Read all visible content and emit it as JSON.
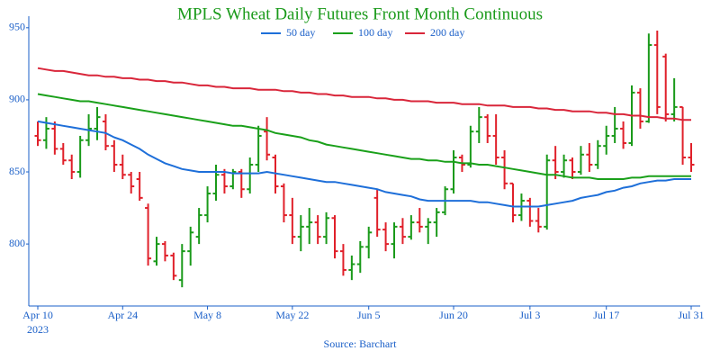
{
  "chart_data": {
    "type": "ohlc",
    "title": "MPLS Wheat Daily Futures Front Month Continuous",
    "source": "Source: Barchart",
    "x_year": "2023",
    "categories": [
      "Apr 10",
      null,
      null,
      null,
      null,
      null,
      null,
      null,
      null,
      null,
      "Apr 24",
      null,
      null,
      null,
      null,
      null,
      null,
      null,
      null,
      null,
      "May 8",
      null,
      null,
      null,
      null,
      null,
      null,
      null,
      null,
      null,
      "May 22",
      null,
      null,
      null,
      null,
      null,
      null,
      null,
      null,
      "Jun 5",
      null,
      null,
      null,
      null,
      null,
      null,
      null,
      null,
      null,
      "Jun 20",
      null,
      null,
      null,
      null,
      null,
      null,
      null,
      null,
      "Jul 3",
      null,
      null,
      null,
      null,
      null,
      null,
      null,
      null,
      "Jul 17",
      null,
      null,
      null,
      null,
      null,
      null,
      null,
      null,
      null,
      "Jul 31"
    ],
    "open": [
      875,
      872,
      880,
      866,
      858,
      850,
      872,
      880,
      885,
      868,
      855,
      848,
      845,
      825,
      788,
      800,
      792,
      775,
      795,
      805,
      820,
      835,
      848,
      840,
      850,
      838,
      855,
      878,
      860,
      840,
      820,
      805,
      812,
      815,
      805,
      818,
      795,
      782,
      786,
      798,
      832,
      810,
      800,
      812,
      805,
      815,
      812,
      815,
      822,
      838,
      860,
      855,
      878,
      888,
      875,
      860,
      842,
      820,
      830,
      816,
      812,
      858,
      850,
      858,
      850,
      862,
      855,
      868,
      875,
      880,
      870,
      905,
      885,
      938,
      930,
      890,
      895,
      860
    ],
    "high": [
      885,
      888,
      885,
      870,
      862,
      875,
      890,
      895,
      890,
      872,
      862,
      850,
      850,
      828,
      805,
      802,
      794,
      800,
      812,
      825,
      840,
      855,
      852,
      852,
      852,
      860,
      882,
      888,
      862,
      842,
      832,
      820,
      825,
      820,
      822,
      820,
      800,
      792,
      802,
      812,
      838,
      815,
      815,
      818,
      820,
      825,
      818,
      825,
      840,
      865,
      862,
      882,
      895,
      890,
      890,
      865,
      842,
      835,
      832,
      825,
      862,
      868,
      862,
      860,
      868,
      870,
      872,
      882,
      895,
      885,
      910,
      908,
      946,
      948,
      932,
      915,
      895,
      870
    ],
    "low": [
      868,
      866,
      862,
      855,
      845,
      846,
      868,
      872,
      865,
      850,
      845,
      835,
      830,
      785,
      785,
      788,
      775,
      770,
      785,
      800,
      815,
      830,
      835,
      838,
      832,
      835,
      850,
      858,
      835,
      815,
      800,
      795,
      800,
      800,
      800,
      790,
      778,
      775,
      780,
      790,
      805,
      795,
      790,
      800,
      803,
      808,
      800,
      805,
      820,
      835,
      850,
      853,
      870,
      870,
      855,
      838,
      815,
      816,
      812,
      808,
      810,
      845,
      846,
      845,
      848,
      850,
      852,
      862,
      870,
      866,
      868,
      880,
      884,
      890,
      885,
      885,
      855,
      850
    ],
    "close": [
      872,
      880,
      866,
      858,
      850,
      872,
      880,
      888,
      868,
      855,
      848,
      840,
      832,
      790,
      800,
      792,
      778,
      795,
      808,
      820,
      835,
      848,
      840,
      850,
      838,
      855,
      875,
      862,
      840,
      820,
      805,
      812,
      815,
      805,
      818,
      795,
      782,
      786,
      798,
      808,
      810,
      800,
      812,
      805,
      815,
      812,
      815,
      822,
      838,
      860,
      855,
      878,
      888,
      875,
      860,
      842,
      820,
      830,
      816,
      812,
      858,
      850,
      858,
      850,
      862,
      855,
      868,
      875,
      880,
      870,
      905,
      885,
      938,
      895,
      890,
      895,
      860,
      855
    ],
    "up_color": "#1a9a1a",
    "down_color": "#e0202a",
    "series": [
      {
        "name": "50 day",
        "color": "#1e6fd9",
        "values": [
          885,
          884,
          883,
          882,
          881,
          880,
          879,
          878,
          877,
          874,
          872,
          869,
          866,
          862,
          859,
          856,
          854,
          852,
          851,
          850,
          850,
          850,
          850,
          849,
          849,
          849,
          849,
          850,
          849,
          848,
          847,
          846,
          845,
          844,
          843,
          843,
          842,
          841,
          840,
          839,
          838,
          836,
          835,
          834,
          833,
          831,
          830,
          830,
          830,
          830,
          830,
          830,
          829,
          829,
          828,
          827,
          826,
          826,
          826,
          826,
          827,
          828,
          829,
          830,
          832,
          833,
          834,
          836,
          837,
          839,
          840,
          842,
          843,
          844,
          844,
          845,
          845,
          845
        ]
      },
      {
        "name": "100 day",
        "color": "#1aa01a",
        "values": [
          904,
          903,
          902,
          901,
          900,
          899,
          899,
          898,
          897,
          896,
          895,
          894,
          893,
          892,
          891,
          890,
          889,
          888,
          887,
          886,
          885,
          884,
          883,
          882,
          882,
          881,
          880,
          879,
          877,
          876,
          875,
          874,
          872,
          871,
          869,
          868,
          867,
          866,
          865,
          864,
          863,
          862,
          861,
          860,
          859,
          859,
          858,
          858,
          857,
          857,
          856,
          856,
          855,
          855,
          854,
          853,
          852,
          851,
          850,
          849,
          848,
          848,
          847,
          846,
          846,
          846,
          845,
          845,
          845,
          845,
          846,
          846,
          847,
          847,
          847,
          847,
          847,
          847
        ]
      },
      {
        "name": "200 day",
        "color": "#d9263a",
        "values": [
          922,
          921,
          920,
          920,
          919,
          918,
          917,
          917,
          916,
          916,
          915,
          915,
          914,
          914,
          913,
          913,
          912,
          912,
          911,
          910,
          910,
          909,
          909,
          908,
          908,
          908,
          907,
          907,
          907,
          906,
          906,
          905,
          905,
          904,
          904,
          903,
          903,
          902,
          902,
          902,
          901,
          901,
          900,
          900,
          899,
          899,
          899,
          898,
          898,
          898,
          897,
          897,
          897,
          896,
          896,
          896,
          895,
          895,
          895,
          894,
          894,
          893,
          893,
          892,
          892,
          892,
          891,
          891,
          890,
          890,
          889,
          889,
          888,
          888,
          887,
          887,
          886,
          886
        ]
      }
    ],
    "ylim": [
      757,
      958
    ],
    "yticks": [
      800,
      850,
      900,
      950
    ]
  }
}
